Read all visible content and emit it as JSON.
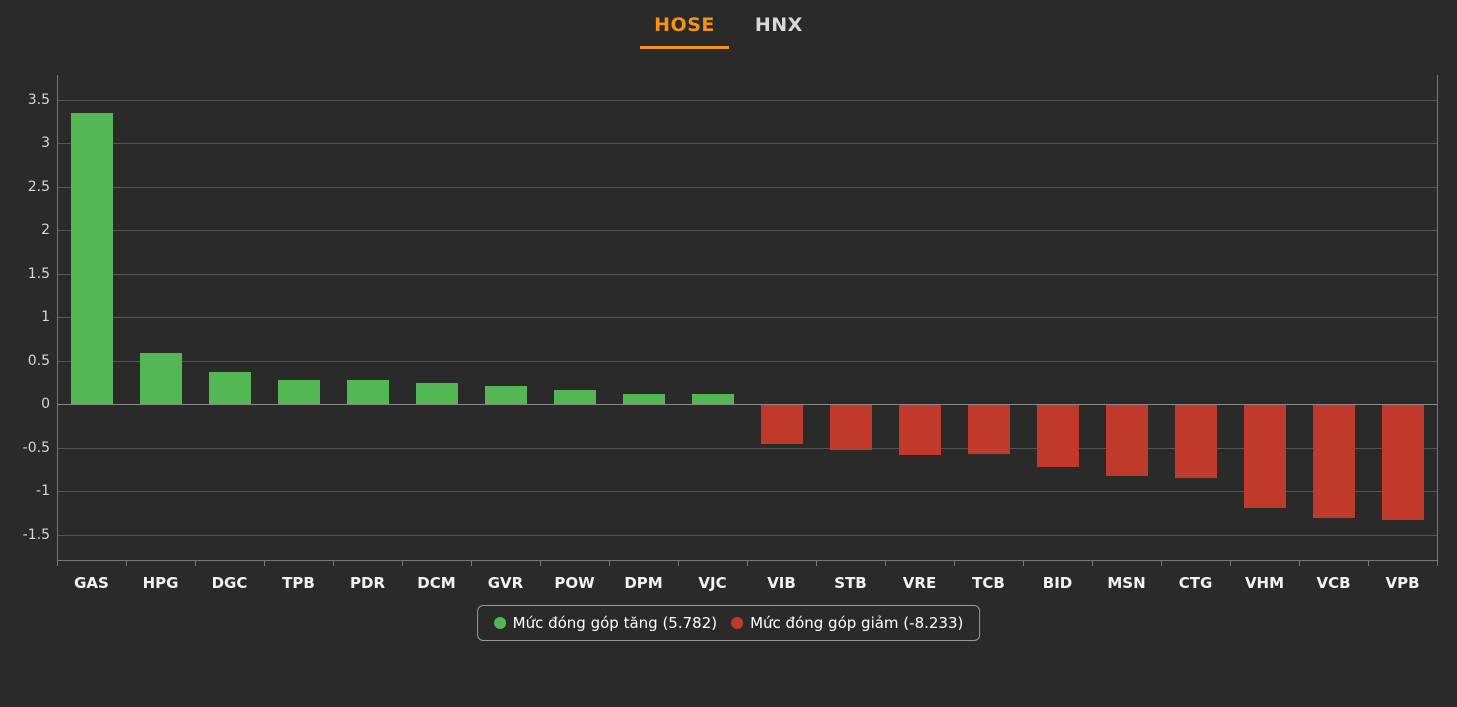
{
  "tabs": [
    {
      "label": "HOSE",
      "active": true
    },
    {
      "label": "HNX",
      "active": false
    }
  ],
  "legend": {
    "increase_label": "Mức đóng góp tăng (5.782)",
    "decrease_label": "Mức đóng góp giảm (-8.233)",
    "increase_total": "5.782",
    "decrease_total": "-8.233"
  },
  "colors": {
    "increase": "#53b853",
    "decrease": "#c0392b",
    "tab_active": "#f39119",
    "background": "#2a2a2a",
    "grid": "#555555",
    "axis_text": "#d6d6d6",
    "category_text": "#f2f2f2"
  },
  "chart_data": {
    "type": "bar",
    "categories": [
      "GAS",
      "HPG",
      "DGC",
      "TPB",
      "PDR",
      "DCM",
      "GVR",
      "POW",
      "DPM",
      "VJC",
      "VIB",
      "STB",
      "VRE",
      "TCB",
      "BID",
      "MSN",
      "CTG",
      "VHM",
      "VCB",
      "VPB"
    ],
    "values": [
      3.34,
      0.59,
      0.37,
      0.28,
      0.28,
      0.24,
      0.21,
      0.16,
      0.12,
      0.11,
      -0.45,
      -0.52,
      -0.57,
      -0.56,
      -0.71,
      -0.82,
      -0.84,
      -1.18,
      -1.3,
      -1.32
    ],
    "yticks": [
      "3.5",
      "3",
      "2.5",
      "2",
      "1.5",
      "1",
      "0.5",
      "0",
      "-0.5",
      "-1",
      "-1.5"
    ],
    "ylim": [
      -1.8,
      3.8
    ],
    "grid": true,
    "legend_position": "bottom",
    "legend_entries": [
      "Mức đóng góp tăng (5.782)",
      "Mức đóng góp giảm (-8.233)"
    ],
    "positive_color": "#53b853",
    "negative_color": "#c0392b"
  }
}
